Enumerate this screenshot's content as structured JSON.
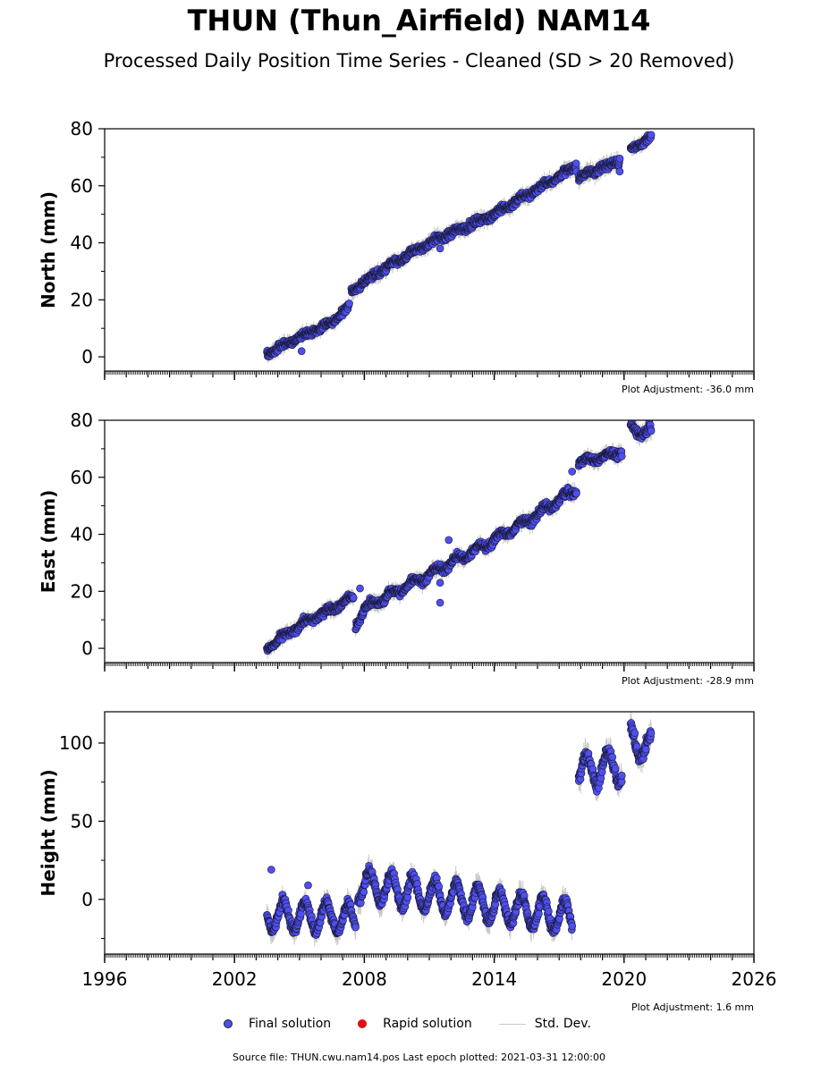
{
  "header": {
    "title": "THUN (Thun_Airfield) NAM14",
    "subtitle": "Processed Daily Position Time Series - Cleaned (SD > 20 Removed)"
  },
  "legend": {
    "final_label": "Final solution",
    "rapid_label": "Rapid solution",
    "std_label": "Std. Dev."
  },
  "footer": {
    "source": "Source file: THUN.cwu.nam14.pos  Last epoch plotted: 2021-03-31 12:00:00"
  },
  "colors": {
    "final": "#4f4ff0",
    "rapid": "#e01010",
    "std": "#c8c8c8",
    "edge": "#1a1a3a"
  },
  "chart_data": [
    {
      "type": "scatter",
      "name": "North",
      "ylabel": "North (mm)",
      "adjustment": "Plot Adjustment: -36.0 mm",
      "xlim": [
        1996,
        2026
      ],
      "ylim": [
        -5,
        80
      ],
      "yticks": [
        0,
        20,
        40,
        60,
        80
      ],
      "xticks": [
        1996,
        2002,
        2008,
        2014,
        2020,
        2026
      ],
      "show_xtick_labels": false,
      "segments": [
        {
          "x": [
            2003.5,
            2005.0,
            2006.5,
            2007.3
          ],
          "y": [
            1,
            7,
            12,
            18
          ],
          "amp": 1.2,
          "season": 0.5
        },
        {
          "x": [
            2007.4,
            2008.5,
            2011.0,
            2014.0,
            2016.0,
            2017.8
          ],
          "y": [
            23,
            29,
            40,
            50,
            59,
            67
          ],
          "amp": 1.3,
          "season": 0.5
        },
        {
          "x": [
            2017.9,
            2019.8
          ],
          "y": [
            63,
            69
          ],
          "amp": 1.4,
          "season": 0.5
        },
        {
          "x": [
            2020.3,
            2021.25
          ],
          "y": [
            73,
            77
          ],
          "amp": 1.2,
          "season": 0.5
        }
      ],
      "outliers": [
        [
          2005.1,
          2
        ],
        [
          2011.5,
          38
        ],
        [
          2019.8,
          65
        ]
      ]
    },
    {
      "type": "scatter",
      "name": "East",
      "ylabel": "East (mm)",
      "adjustment": "Plot Adjustment: -28.9 mm",
      "xlim": [
        1996,
        2026
      ],
      "ylim": [
        -5,
        80
      ],
      "yticks": [
        0,
        20,
        40,
        60,
        80
      ],
      "xticks": [
        1996,
        2002,
        2008,
        2014,
        2020,
        2026
      ],
      "show_xtick_labels": false,
      "segments": [
        {
          "x": [
            2003.5,
            2005.0,
            2006.5,
            2007.5
          ],
          "y": [
            0,
            8,
            14,
            18
          ],
          "amp": 1.2,
          "season": 0.8
        },
        {
          "x": [
            2007.6,
            2008.0,
            2010.0,
            2012.0,
            2014.0,
            2016.0,
            2017.8
          ],
          "y": [
            8,
            14,
            22,
            30,
            38,
            47,
            56
          ],
          "amp": 1.3,
          "season": 1.2
        },
        {
          "x": [
            2017.9,
            2019.9
          ],
          "y": [
            65,
            69
          ],
          "amp": 1.3,
          "season": 1.0
        },
        {
          "x": [
            2020.3,
            2021.25
          ],
          "y": [
            77,
            76
          ],
          "amp": 1.5,
          "season": 1.5
        }
      ],
      "outliers": [
        [
          2007.8,
          21
        ],
        [
          2011.5,
          16
        ],
        [
          2011.5,
          23
        ],
        [
          2011.9,
          38
        ],
        [
          2017.6,
          62
        ]
      ]
    },
    {
      "type": "scatter",
      "name": "Height",
      "ylabel": "Height (mm)",
      "adjustment": "Plot Adjustment: 1.6 mm",
      "xlim": [
        1996,
        2026
      ],
      "ylim": [
        -35,
        120
      ],
      "yticks": [
        0,
        50,
        100
      ],
      "xticks": [
        1996,
        2002,
        2008,
        2014,
        2020,
        2026
      ],
      "show_xtick_labels": true,
      "segments": [
        {
          "x": [
            2003.5,
            2007.6
          ],
          "y": [
            -10,
            -12
          ],
          "amp": 3.5,
          "season": 9
        },
        {
          "x": [
            2007.7,
            2017.6
          ],
          "y": [
            10,
            -12
          ],
          "amp": 3.5,
          "season": 10
        },
        {
          "x": [
            2017.9,
            2019.9
          ],
          "y": [
            82,
            86
          ],
          "amp": 4,
          "season": 10
        },
        {
          "x": [
            2020.3,
            2021.25
          ],
          "y": [
            102,
            96
          ],
          "amp": 4,
          "season": 9
        }
      ],
      "outliers": [
        [
          2003.7,
          19
        ],
        [
          2005.4,
          9
        ]
      ]
    }
  ]
}
